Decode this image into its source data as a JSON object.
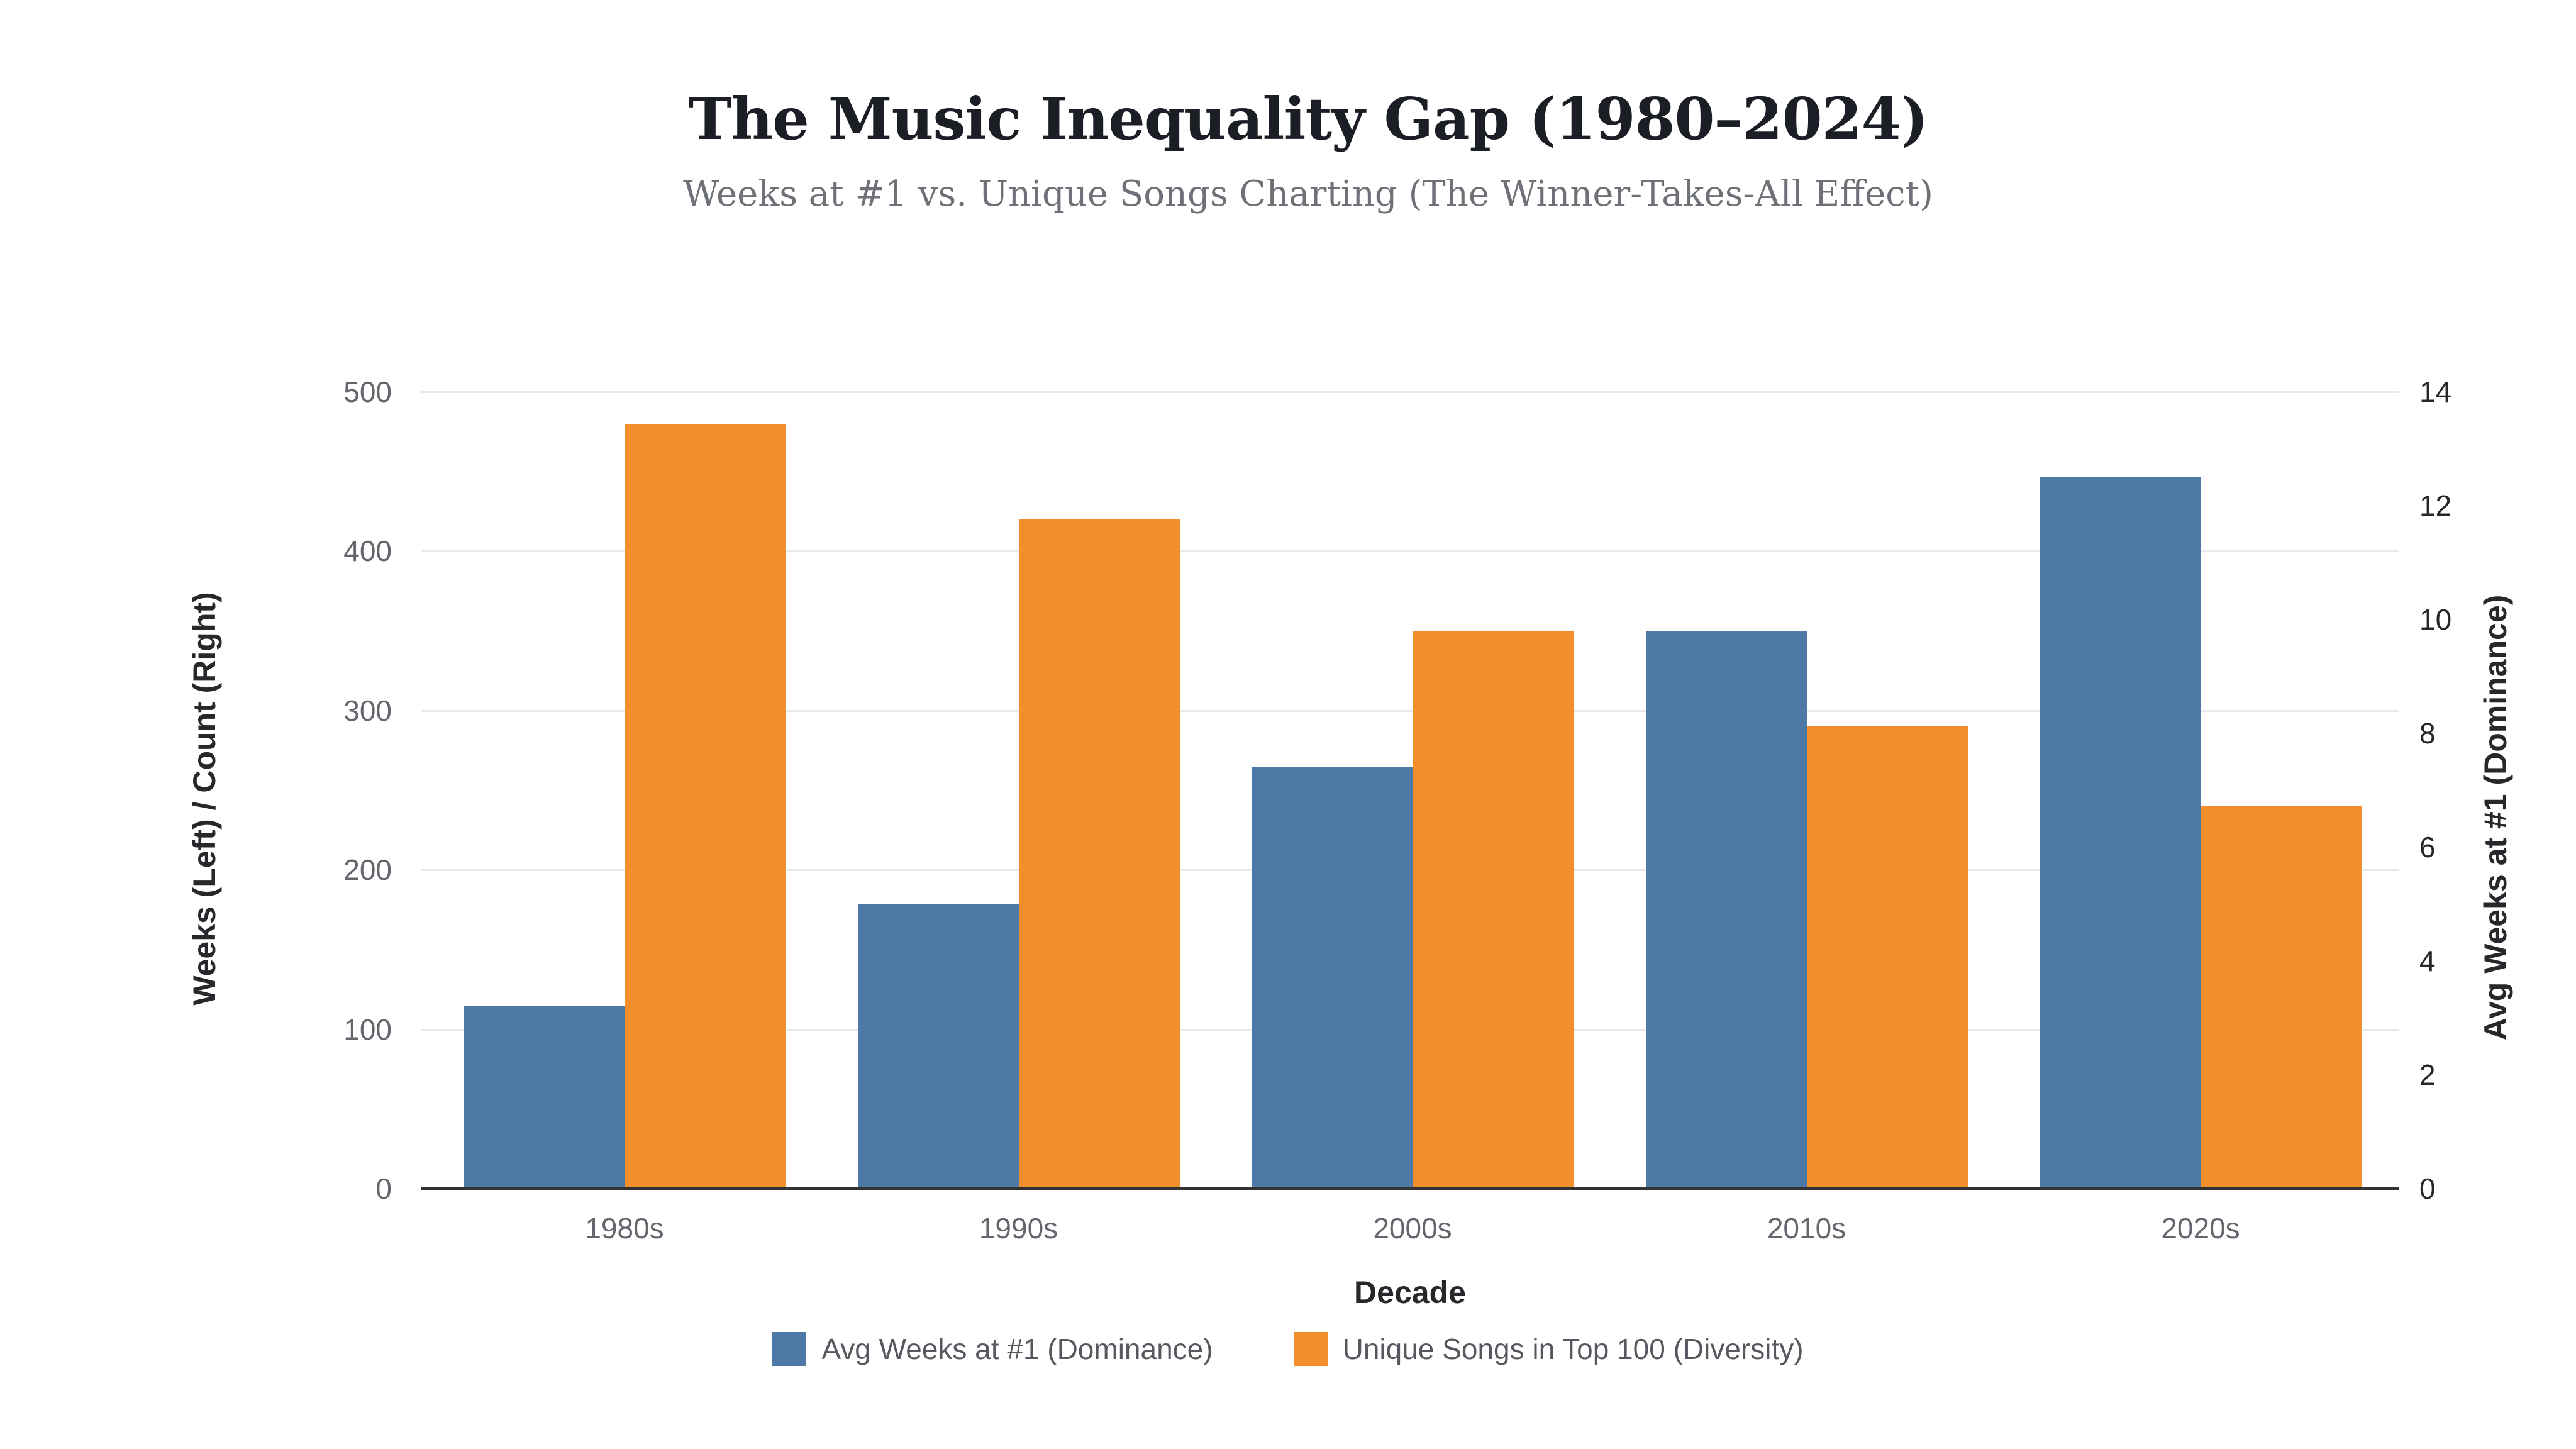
{
  "header": {
    "title": "The Music Inequality Gap (1980–2024)",
    "subtitle": "Weeks at #1 vs. Unique Songs Charting (The Winner-Takes-All Effect)"
  },
  "axes": {
    "left_title": "Weeks (Left) / Count (Right)",
    "right_title": "Avg Weeks at #1 (Dominance)",
    "x_title": "Decade"
  },
  "colors": {
    "dominance_blue": "#4e79a7",
    "diversity_orange": "#f28e2b",
    "axis_line": "#333333",
    "gridline": "#e8e9eb",
    "tick_left": "#63676d",
    "tick_right": "#26282b",
    "title_text": "#1b1e24",
    "subtitle_text": "#6e7278",
    "legend_text": "#55595f"
  },
  "chart_data": {
    "type": "bar",
    "categories": [
      "1980s",
      "1990s",
      "2000s",
      "2010s",
      "2020s"
    ],
    "series": [
      {
        "name": "Avg Weeks at #1 (Dominance)",
        "axis": "right",
        "color": "#4e79a7",
        "values": [
          3.2,
          5.0,
          7.4,
          9.8,
          12.5
        ]
      },
      {
        "name": "Unique Songs in Top 100 (Diversity)",
        "axis": "left",
        "color": "#f28e2b",
        "values": [
          480,
          420,
          350,
          290,
          240
        ]
      }
    ],
    "title": "The Music Inequality Gap (1980–2024)",
    "subtitle": "Weeks at #1 vs. Unique Songs Charting (The Winner-Takes-All Effect)",
    "xlabel": "Decade",
    "ylabel_left": "Weeks (Left) / Count (Right)",
    "ylabel_right": "Avg Weeks at #1 (Dominance)",
    "yticks_left": [
      0,
      100,
      200,
      300,
      400,
      500
    ],
    "yticks_right": [
      0,
      2,
      4,
      6,
      8,
      10,
      12,
      14
    ],
    "ylim_left": [
      0,
      500
    ],
    "ylim_right": [
      0,
      14
    ],
    "grid": "horizontal-at-left-ticks",
    "legend_position": "bottom"
  }
}
